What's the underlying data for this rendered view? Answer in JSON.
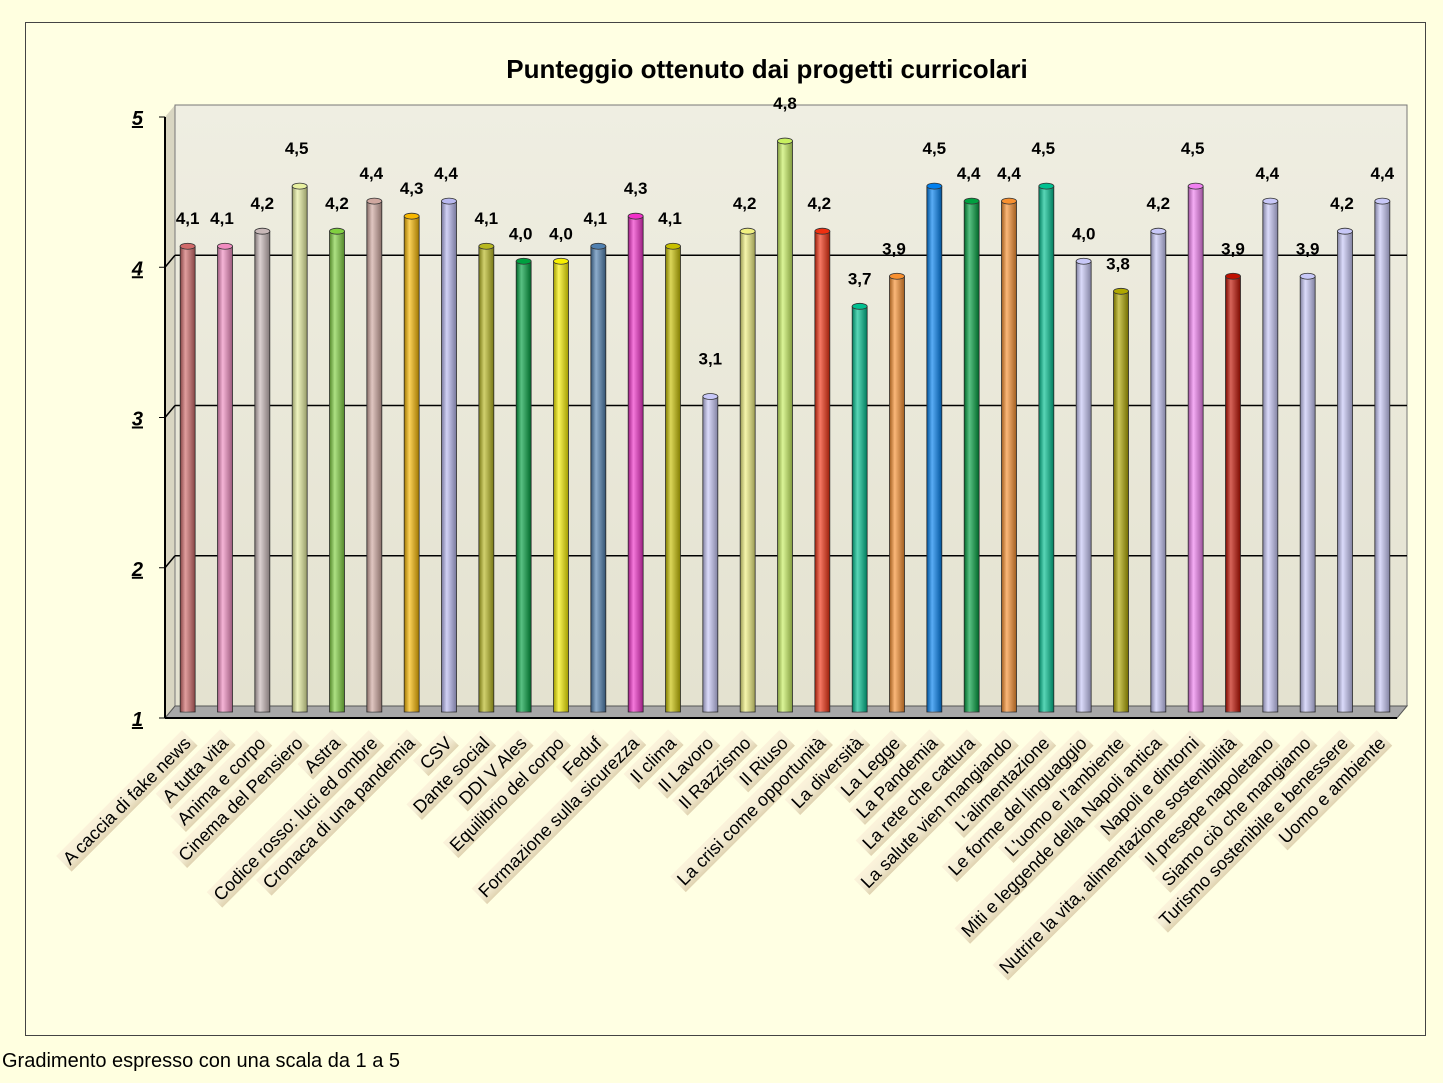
{
  "chart_data": {
    "type": "bar",
    "title": "Punteggio ottenuto dai progetti curricolari",
    "xlabel": "",
    "ylabel": "",
    "ylim": [
      1,
      5
    ],
    "yticks": [
      "1",
      "2",
      "3",
      "4",
      "5"
    ],
    "grid": true,
    "style": "3d-cylinder",
    "categories": [
      "A caccia di fake news",
      "A tutta vita",
      "Anima e corpo",
      "Cinema del Pensiero",
      "Astra",
      "Codice rosso: luci ed ombre",
      "Cronaca di una pandemia",
      "CSV",
      "Dante social",
      "DDI V Ales",
      "Equilibrio del corpo",
      "Feduf",
      "Formazione sulla sicurezza",
      "Il clima",
      "Il Lavoro",
      "Il Razzismo",
      "Il Riuso",
      "La crisi come opportunità",
      "La diversità",
      "La Legge",
      "La Pandemia",
      "La rete che cattura",
      "La salute vien mangiando",
      "L'alimentazione",
      "Le forme del linguaggio",
      "L'uomo e l'ambiente",
      "Miti e leggende della Napoli antica",
      "Napoli e dintorni",
      "Nutrire la vita, alimentazione sostenibilità",
      "Il presepe napoletano",
      "Siamo ciò che mangiamo",
      "Turismo sostenibile e benessere",
      "Uomo e ambiente"
    ],
    "values": [
      4.1,
      4.1,
      4.2,
      4.5,
      4.2,
      4.4,
      4.3,
      4.4,
      4.1,
      4.0,
      4.0,
      4.1,
      4.3,
      4.1,
      3.1,
      4.2,
      4.8,
      4.2,
      3.7,
      3.9,
      4.5,
      4.4,
      4.4,
      4.5,
      4.0,
      3.8,
      4.2,
      4.5,
      3.9,
      4.4,
      3.9,
      4.2,
      4.4
    ],
    "data_labels": [
      "4,1",
      "4,1",
      "4,2",
      "4,5",
      "4,2",
      "4,4",
      "4,3",
      "4,4",
      "4,1",
      "4,0",
      "4,0",
      "4,1",
      "4,3",
      "4,1",
      "3,1",
      "4,2",
      "4,8",
      "4,2",
      "3,7",
      "3,9",
      "4,5",
      "4,4",
      "4,4",
      "4,5",
      "4,0",
      "3,8",
      "4,2",
      "4,5",
      "3,9",
      "4,4",
      "3,9",
      "4,2",
      "4,4"
    ],
    "colors": [
      "#d06a6a",
      "#f08cc0",
      "#c8b8b8",
      "#e8f0a0",
      "#80d040",
      "#d0a8a0",
      "#f8b800",
      "#b8b8f0",
      "#b8b820",
      "#00a040",
      "#f8f000",
      "#5080b0",
      "#f030c8",
      "#c8c000",
      "#c8c8f8",
      "#f0f080",
      "#c8f060",
      "#f03010",
      "#00c090",
      "#f89030",
      "#0080f0",
      "#00a040",
      "#f89030",
      "#00c090",
      "#c8c8f8",
      "#b0a800",
      "#c8c8f8",
      "#f080f0",
      "#c01000",
      "#c8c8f8",
      "#c8c8f8",
      "#c8c8f8",
      "#c8c8f8"
    ]
  },
  "footnote": "Gradimento espresso con una scala da 1 a 5"
}
